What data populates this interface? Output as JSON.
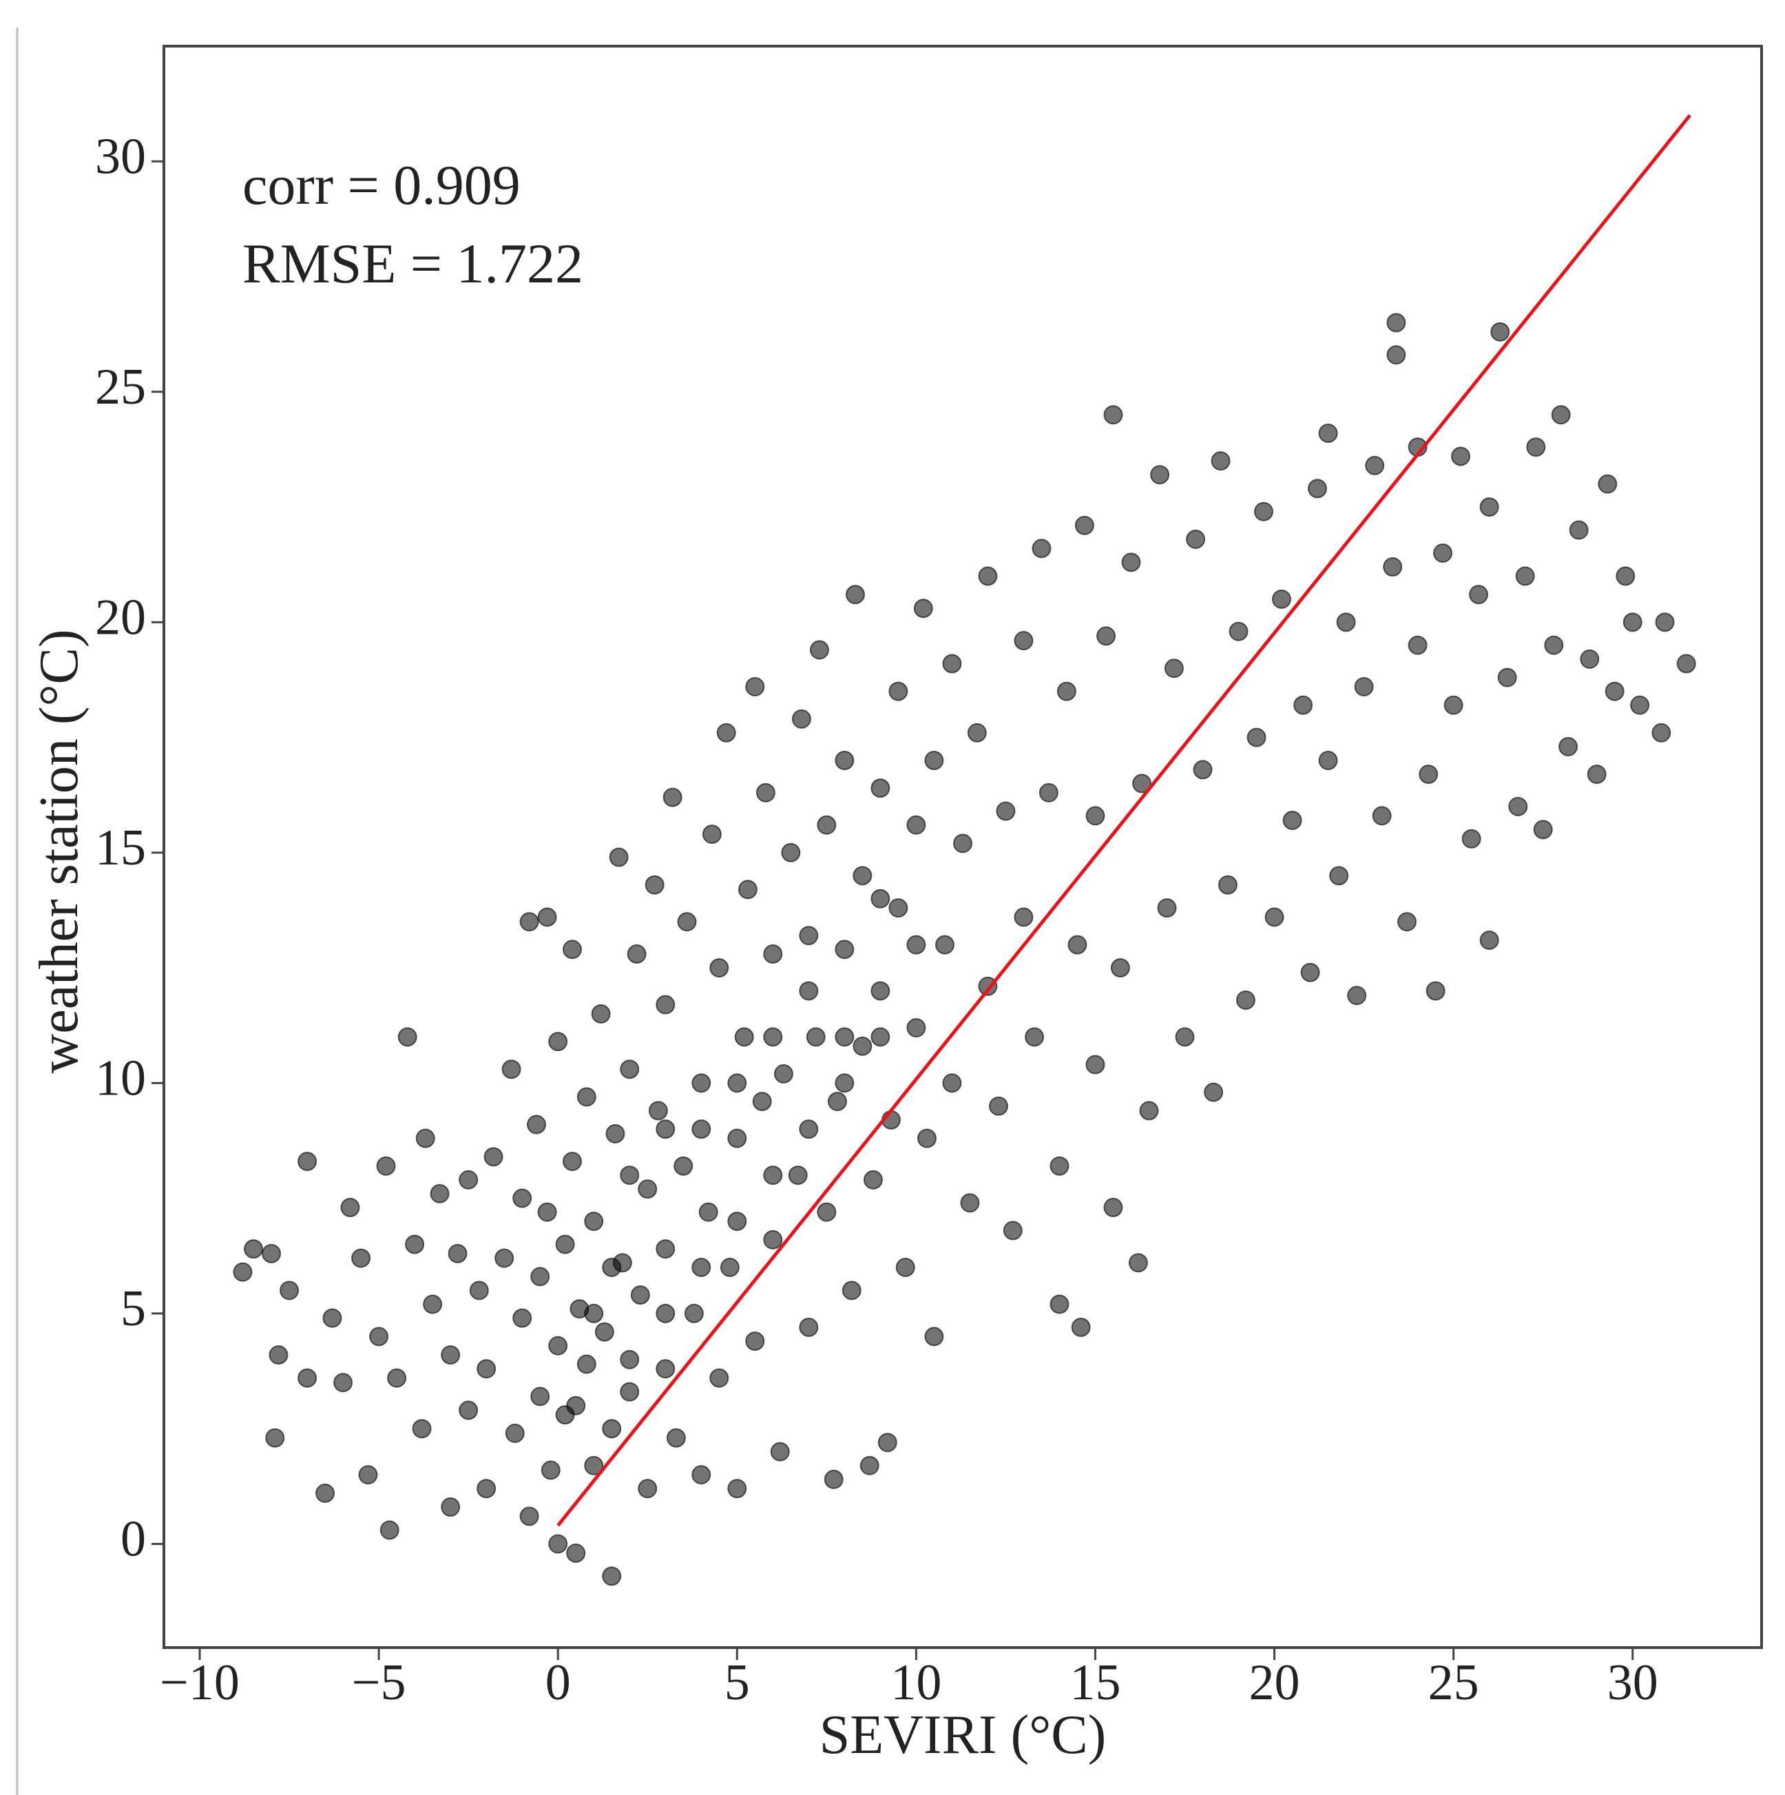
{
  "chart_data": {
    "type": "scatter",
    "xlabel": "SEVIRI (°C)",
    "ylabel": "weather station (°C)",
    "annotations": [
      "corr = 0.909",
      "RMSE = 1.722"
    ],
    "xlim": [
      -11,
      33.6
    ],
    "ylim": [
      -2.25,
      32.5
    ],
    "xticks": [
      {
        "value": -10,
        "label": "−10"
      },
      {
        "value": -5,
        "label": "−5"
      },
      0,
      5,
      10,
      15,
      20,
      25,
      30
    ],
    "yticks": [
      0,
      5,
      10,
      15,
      20,
      25,
      30
    ],
    "grid": false,
    "series": [
      {
        "color": "#000000",
        "x": [
          -8.8,
          -8.5,
          -8,
          -7.8,
          -7.9,
          -7.5,
          -7,
          -7,
          -6.5,
          -6.3,
          -6,
          -5.8,
          -5.5,
          -5.3,
          -5,
          -4.8,
          -4.7,
          -4.5,
          -4.2,
          -4,
          -3.8,
          -3.7,
          -3.5,
          -3.3,
          -3,
          -3,
          -2.8,
          -2.5,
          -2.5,
          -2.2,
          -2,
          -2,
          -1.8,
          -1.5,
          -1.3,
          -1.2,
          -1,
          -1,
          -0.8,
          -0.8,
          -0.6,
          -0.5,
          -0.5,
          -0.3,
          -0.3,
          -0.2,
          0,
          0,
          0,
          0.2,
          0.2,
          0.4,
          0.4,
          0.5,
          0.6,
          0.8,
          0.8,
          1,
          1,
          1.2,
          1.3,
          1.5,
          1.5,
          1.6,
          1.7,
          1.8,
          2,
          2,
          2.2,
          2.3,
          2.5,
          2.5,
          2.7,
          2.8,
          3,
          3,
          3,
          3.2,
          3.3,
          3.5,
          3.6,
          3.8,
          4,
          4,
          4.2,
          4.3,
          4.5,
          4.5,
          4.7,
          4.8,
          5,
          5,
          5.2,
          5.3,
          5.5,
          5.5,
          5.7,
          5.8,
          6,
          6,
          6.2,
          6.3,
          6.5,
          6.7,
          6.8,
          7,
          7,
          7.2,
          7.3,
          7.5,
          7.5,
          7.7,
          7.8,
          8,
          8,
          8.2,
          8.3,
          8.5,
          8.5,
          8.7,
          8.8,
          9,
          9,
          9.2,
          9.3,
          9.5,
          9.5,
          9.7,
          10,
          10,
          10.2,
          10.3,
          10.5,
          10.5,
          10.8,
          11,
          11,
          11.3,
          11.5,
          11.7,
          12,
          12,
          12.3,
          12.5,
          12.7,
          13,
          13,
          13.3,
          13.5,
          13.7,
          14,
          14,
          14.2,
          14.5,
          14.6,
          14.7,
          15,
          15,
          15.3,
          15.5,
          15.5,
          15.7,
          16,
          16.2,
          16.3,
          16.5,
          16.8,
          17,
          17.2,
          17.5,
          17.8,
          18,
          18.3,
          18.5,
          18.7,
          19,
          19.2,
          19.5,
          19.7,
          20,
          20.2,
          20.5,
          20.8,
          21,
          21.2,
          21.5,
          21.5,
          21.8,
          22,
          22.3,
          22.5,
          22.8,
          23,
          23.3,
          23.4,
          23.4,
          23.7,
          24,
          24,
          24.3,
          24.5,
          24.7,
          25,
          25.2,
          25.5,
          25.7,
          26,
          26,
          26.3,
          26.5,
          26.8,
          27,
          27.3,
          27.5,
          27.8,
          28,
          28.2,
          28.5,
          28.8,
          29,
          29.3,
          29.5,
          29.8,
          30,
          30.2,
          30.8,
          30.9,
          31.5,
          1,
          1.5,
          2,
          3,
          4,
          5,
          6,
          7,
          8,
          9,
          10,
          2,
          3,
          4,
          5,
          6,
          7,
          8,
          9,
          0.5
        ],
        "values": [
          5.9,
          6.4,
          6.3,
          4.1,
          2.3,
          5.5,
          3.6,
          8.3,
          1.1,
          4.9,
          3.5,
          7.3,
          6.2,
          1.5,
          4.5,
          8.2,
          0.3,
          3.6,
          11,
          6.5,
          2.5,
          8.8,
          5.2,
          7.6,
          0.8,
          4.1,
          6.3,
          2.9,
          7.9,
          5.5,
          1.2,
          3.8,
          8.4,
          6.2,
          10.3,
          2.4,
          4.9,
          7.5,
          0.6,
          13.5,
          9.1,
          3.2,
          5.8,
          13.6,
          7.2,
          1.6,
          4.3,
          0,
          10.9,
          6.5,
          2.8,
          8.3,
          12.9,
          -0.2,
          5.1,
          3.9,
          9.7,
          1.7,
          7,
          11.5,
          4.6,
          -0.7,
          2.5,
          8.9,
          14.9,
          6.1,
          3.3,
          10.3,
          12.8,
          5.4,
          1.2,
          7.7,
          14.3,
          9.4,
          3.8,
          6.4,
          11.7,
          16.2,
          2.3,
          8.2,
          13.5,
          5,
          1.5,
          10,
          7.2,
          15.4,
          3.6,
          12.5,
          17.6,
          6,
          8.8,
          1.2,
          11,
          14.2,
          18.6,
          4.4,
          9.6,
          16.3,
          6.6,
          12.8,
          2,
          10.2,
          15,
          8,
          17.9,
          4.7,
          13.2,
          11,
          19.4,
          7.2,
          15.6,
          1.4,
          9.6,
          12.9,
          17,
          5.5,
          20.6,
          10.8,
          14.5,
          1.7,
          7.9,
          16.4,
          12,
          2.2,
          9.2,
          18.5,
          13.8,
          6,
          15.6,
          11.2,
          20.3,
          8.8,
          4.5,
          17,
          13,
          10,
          19.1,
          15.2,
          7.4,
          17.6,
          12.1,
          21,
          9.5,
          15.9,
          6.8,
          19.6,
          13.6,
          11,
          21.6,
          16.3,
          8.2,
          5.2,
          18.5,
          13,
          4.7,
          22.1,
          15.8,
          10.4,
          19.7,
          24.5,
          7.3,
          12.5,
          21.3,
          6.1,
          16.5,
          9.4,
          23.2,
          13.8,
          19,
          11,
          21.8,
          16.8,
          9.8,
          23.5,
          14.3,
          19.8,
          11.8,
          17.5,
          22.4,
          13.6,
          20.5,
          15.7,
          18.2,
          12.4,
          22.9,
          17,
          24.1,
          14.5,
          20,
          11.9,
          18.6,
          23.4,
          15.8,
          21.2,
          26.5,
          25.8,
          13.5,
          19.5,
          23.8,
          16.7,
          12,
          21.5,
          18.2,
          23.6,
          15.3,
          20.6,
          13.1,
          22.5,
          26.3,
          18.8,
          16,
          21,
          23.8,
          15.5,
          19.5,
          24.5,
          17.3,
          22,
          19.2,
          16.7,
          23,
          18.5,
          21,
          20,
          18.2,
          17.6,
          20,
          19.1,
          5,
          6,
          8,
          9,
          9,
          10,
          11,
          12,
          11,
          14,
          13,
          4,
          5,
          6,
          7,
          8,
          9,
          10,
          11,
          3
        ]
      }
    ],
    "fit_line": {
      "color": "#e8141c",
      "x": [
        0,
        31.6
      ],
      "values": [
        0.4,
        31
      ]
    }
  }
}
